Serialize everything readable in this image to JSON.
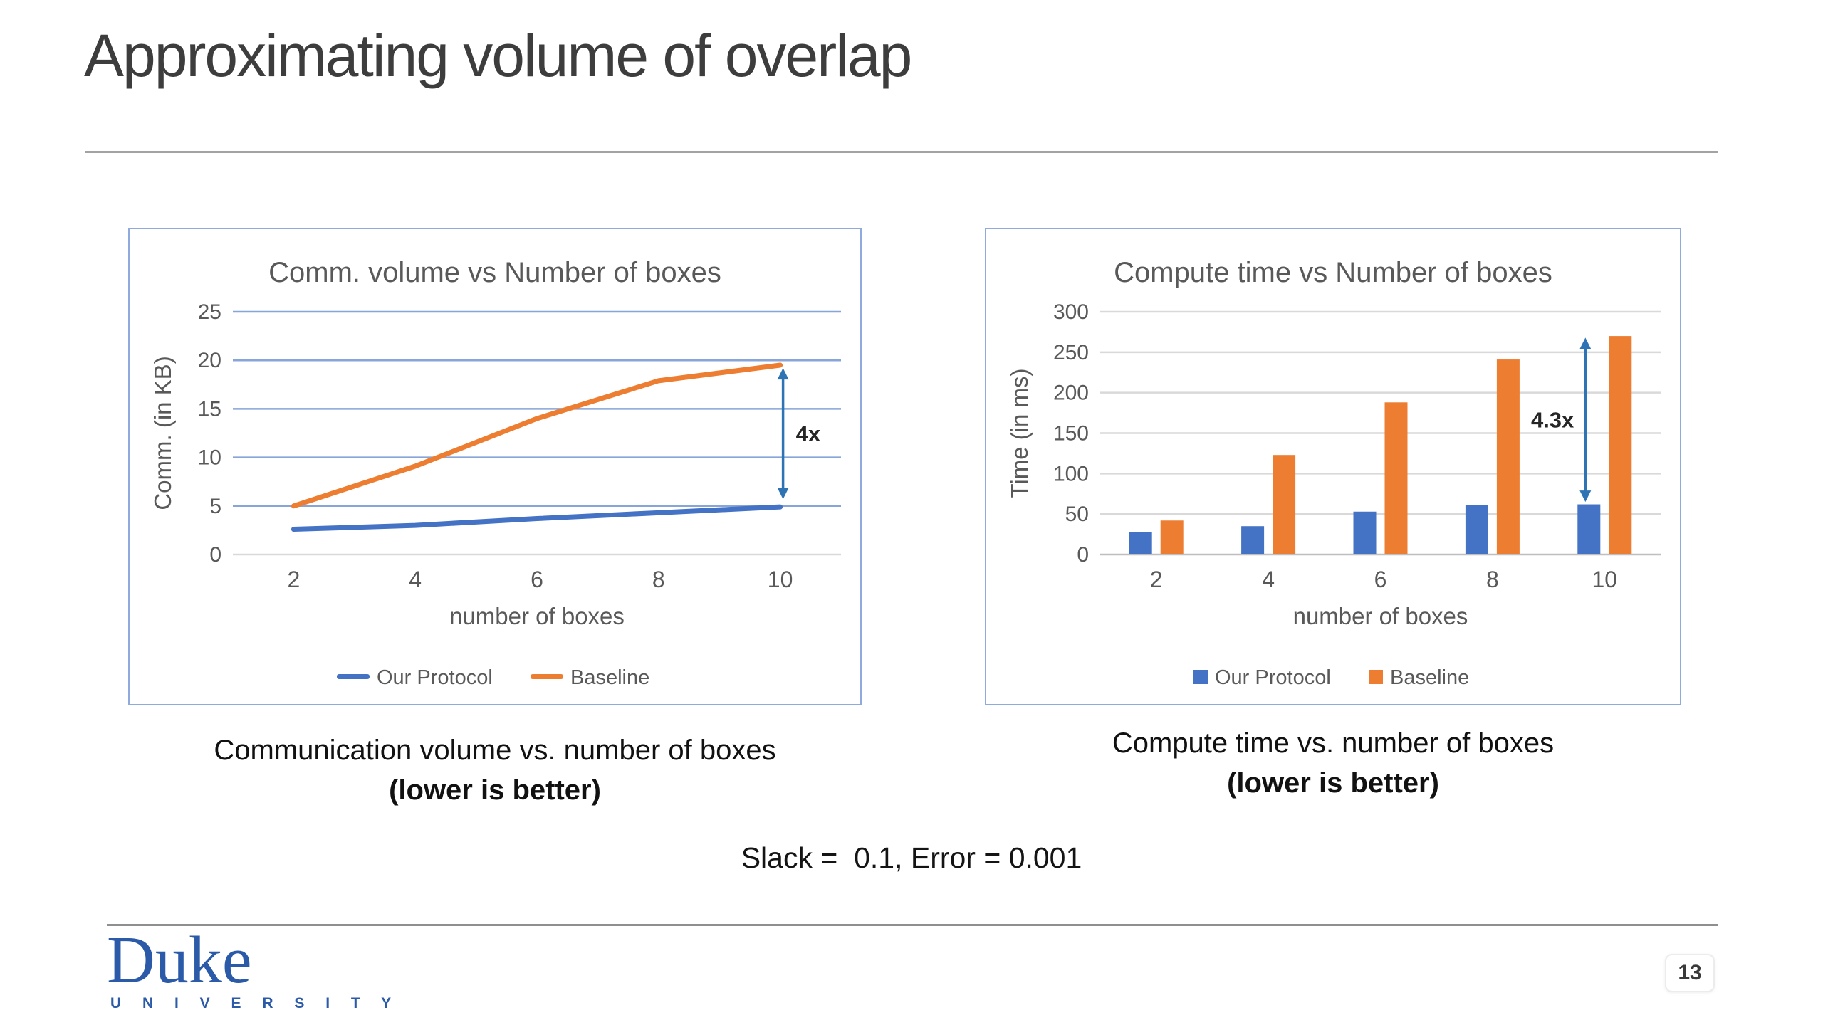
{
  "slide": {
    "title": "Approximating volume of overlap",
    "params_line": "Slack =  0.1, Error = 0.001"
  },
  "colors": {
    "series_blue": "#4472c4",
    "series_orange": "#ed7d31",
    "arrow_blue": "#2e74b5",
    "chart_border": "#8faadc",
    "chart_text": "#595959",
    "duke_blue": "#2b5aa8"
  },
  "captions": [
    {
      "line1": "Communication volume vs. number of boxes",
      "line2": "(lower is better)"
    },
    {
      "line1": "Compute time vs. number of boxes",
      "line2": "(lower is better)"
    }
  ],
  "footer": {
    "logo_word": "Duke",
    "logo_subword": "U N I V E R S I T Y",
    "page_number": "13"
  },
  "chart_data": [
    {
      "type": "line",
      "title": "Comm. volume vs Number of boxes",
      "xlabel": "number of boxes",
      "ylabel": "Comm. (in KB)",
      "categories": [
        2,
        4,
        6,
        8,
        10
      ],
      "y_ticks": [
        0,
        5,
        10,
        15,
        20,
        25
      ],
      "ylim": [
        0,
        25
      ],
      "grid_color": "#87a5d8",
      "zero_line_color": "#d9d9d9",
      "legend_marker": "line",
      "legend_position": "bottom",
      "grid": true,
      "series": [
        {
          "name": "Our Protocol",
          "color": "#4472c4",
          "values": [
            2.6,
            3.0,
            3.7,
            4.3,
            4.9
          ]
        },
        {
          "name": "Baseline",
          "color": "#ed7d31",
          "values": [
            5.0,
            9.1,
            14.0,
            17.9,
            19.5
          ]
        }
      ],
      "annotation": {
        "label": "4x",
        "category": 10,
        "from": 5.7,
        "to": 19.2,
        "label_side": "right",
        "dx": 4
      }
    },
    {
      "type": "bar",
      "title": "Compute time vs Number of boxes",
      "xlabel": "number of boxes",
      "ylabel": "Time (in ms)",
      "categories": [
        2,
        4,
        6,
        8,
        10
      ],
      "y_ticks": [
        0,
        50,
        100,
        150,
        200,
        250,
        300
      ],
      "ylim": [
        0,
        300
      ],
      "grid_color": "#d9d9d9",
      "zero_line_color": "#bfbfbf",
      "legend_marker": "square",
      "legend_position": "bottom",
      "grid": true,
      "series": [
        {
          "name": "Our Protocol",
          "color": "#4472c4",
          "values": [
            28,
            35,
            53,
            61,
            62
          ]
        },
        {
          "name": "Baseline",
          "color": "#ed7d31",
          "values": [
            42,
            123,
            188,
            241,
            270
          ]
        }
      ],
      "annotation": {
        "label": "4.3x",
        "category": 10,
        "from": 65,
        "to": 268,
        "label_side": "left",
        "dx": -27
      }
    }
  ]
}
